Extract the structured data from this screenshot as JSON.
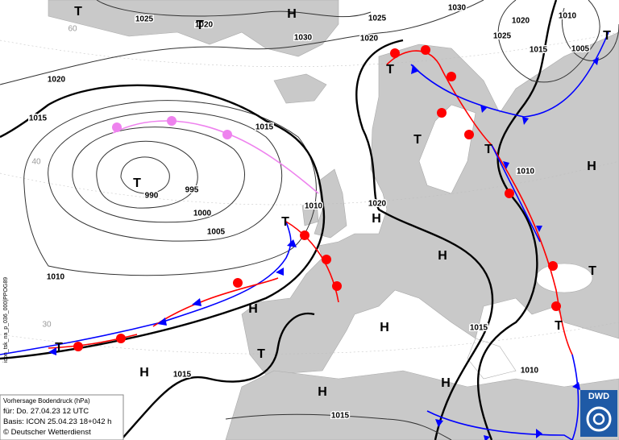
{
  "pressure_centers": [
    "T",
    "T",
    "H",
    "T",
    "T",
    "T",
    "H",
    "T",
    "H",
    "H",
    "T",
    "T",
    "H",
    "H",
    "T",
    "H",
    "H",
    "H",
    "T",
    "T",
    "T"
  ],
  "isobar_labels": [
    "1025",
    "1020",
    "1030",
    "1025",
    "1030",
    "1020",
    "1010",
    "1025",
    "1015",
    "1005",
    "1020",
    "1020",
    "1015",
    "1015",
    "995",
    "990",
    "1000",
    "1005",
    "1010",
    "1020",
    "1010",
    "1010",
    "1015",
    "1015",
    "1010",
    "1015"
  ],
  "latitude_labels": [
    "60",
    "40",
    "30"
  ],
  "info_box": {
    "title": "Vorhersage Bodendruck (hPa)",
    "valid": "für:  Do. 27.04.23  12 UTC",
    "base": "Basis: ICON  25.04.23 18+042 h",
    "copyright": "© Deutscher Wetterdienst"
  },
  "product_code": "icon_tsk_na_p_036_000|PPOG89",
  "logo": "DWD"
}
